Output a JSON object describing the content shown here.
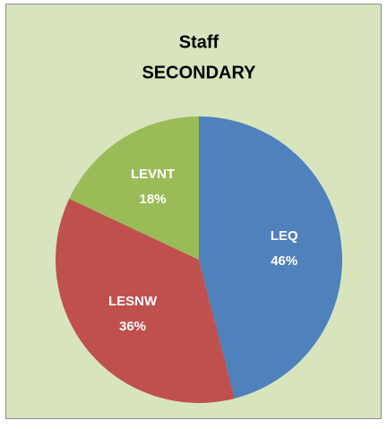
{
  "chart_data": {
    "type": "pie",
    "title": "Staff",
    "subtitle": "SECONDARY",
    "categories": [
      "LEQ",
      "LESNW",
      "LEVNT"
    ],
    "values": [
      46,
      36,
      18
    ],
    "value_labels": [
      "46%",
      "36%",
      "18%"
    ],
    "colors": [
      "#4f81bd",
      "#c0504d",
      "#9bbb59"
    ]
  }
}
